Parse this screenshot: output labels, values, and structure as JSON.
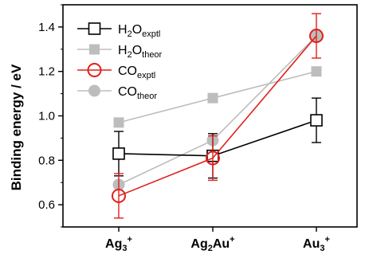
{
  "chart_data": {
    "type": "line",
    "ylabel": "Binding energy / eV",
    "ylim": [
      0.5,
      1.5
    ],
    "yticks": [
      "0.6",
      "0.8",
      "1.0",
      "1.2",
      "1.4"
    ],
    "categories": [
      {
        "base": "Ag",
        "sub": "3",
        "sup": "+"
      },
      {
        "base": "Ag",
        "sub": "2",
        "mid": "Au",
        "sup": "+"
      },
      {
        "base": "Au",
        "sub": "3",
        "sup": "+"
      }
    ],
    "series": [
      {
        "name": "H2O exptl",
        "legend_base": "H",
        "legend_sub1": "2",
        "legend_mid": "O",
        "legend_sub2": "exptl",
        "values": [
          0.83,
          0.82,
          0.98
        ],
        "errors": [
          0.1,
          0.1,
          0.1
        ],
        "color": "#000000",
        "marker": "open-square"
      },
      {
        "name": "H2O theor",
        "legend_base": "H",
        "legend_sub1": "2",
        "legend_mid": "O",
        "legend_sub2": "theor",
        "values": [
          0.97,
          1.08,
          1.2
        ],
        "errors": null,
        "color": "#bdbdbd",
        "marker": "filled-square"
      },
      {
        "name": "CO exptl",
        "legend_base": "",
        "legend_sub1": "",
        "legend_mid": "CO",
        "legend_sub2": "exptl",
        "values": [
          0.64,
          0.81,
          1.36
        ],
        "errors": [
          0.1,
          0.1,
          0.1
        ],
        "color": "#e0201b",
        "marker": "open-circle"
      },
      {
        "name": "CO theor",
        "legend_base": "",
        "legend_sub1": "",
        "legend_mid": "CO",
        "legend_sub2": "theor",
        "values": [
          0.69,
          0.89,
          1.36
        ],
        "errors": null,
        "color": "#bdbdbd",
        "marker": "filled-circle"
      }
    ],
    "legend_position": "top-left"
  }
}
